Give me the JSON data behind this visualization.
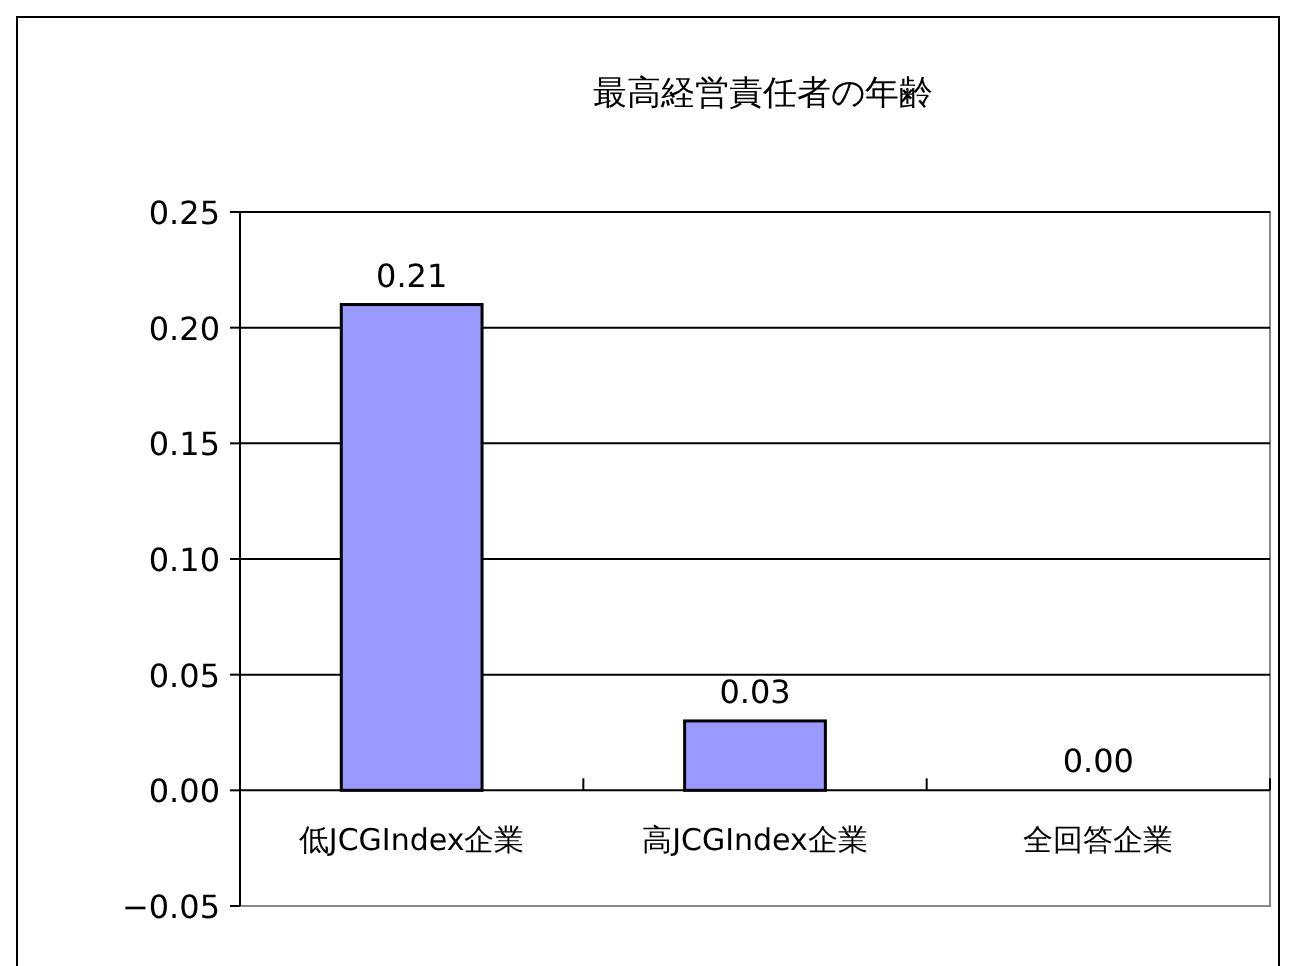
{
  "chart_data": {
    "type": "bar",
    "title": "最高経営責任者の年齢",
    "categories": [
      "低JCGIndex企業",
      "高JCGIndex企業",
      "全回答企業"
    ],
    "values": [
      0.21,
      0.03,
      0.0
    ],
    "color": "#9999ff",
    "ylim": [
      -0.05,
      0.25
    ],
    "yticks": [
      {
        "value": -0.05,
        "label": "−0.05"
      },
      {
        "value": 0,
        "label": "0.00"
      },
      {
        "value": 0.05,
        "label": "0.05"
      },
      {
        "value": 0.1,
        "label": "0.10"
      },
      {
        "value": 0.15,
        "label": "0.15"
      },
      {
        "value": 0.2,
        "label": "0.20"
      },
      {
        "value": 0.25,
        "label": "0.25"
      }
    ],
    "grid": "y",
    "value_labels": [
      "0.21",
      "0.03",
      "0.00"
    ]
  }
}
